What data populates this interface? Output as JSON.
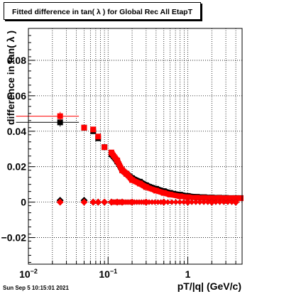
{
  "chart_data": {
    "type": "scatter",
    "title": "Fitted difference in tan( λ ) for Global Rec All EtapT",
    "xlabel": "pT/|q| (GeV/c)",
    "ylabel": "difference in tan( λ )",
    "xscale": "log",
    "xlim": [
      0.01,
      4.8
    ],
    "ylim": [
      -0.035,
      0.098
    ],
    "grid": true,
    "x_ticks": [
      "10^{-2}",
      "10^{-1}",
      "1"
    ],
    "y_ticks": [
      "−0.02",
      "0",
      "0.02",
      "0.04",
      "0.06",
      "0.08"
    ],
    "series": [
      {
        "color": "#000000",
        "marker": "square",
        "points": [
          [
            0.025,
            0.045
          ],
          [
            0.05,
            0.042
          ],
          [
            0.065,
            0.04
          ],
          [
            0.075,
            0.036
          ],
          [
            0.09,
            0.031
          ],
          [
            0.11,
            0.027
          ],
          [
            0.13,
            0.023
          ],
          [
            0.15,
            0.018
          ],
          [
            0.17,
            0.016
          ],
          [
            0.2,
            0.0135
          ],
          [
            0.25,
            0.0115
          ],
          [
            0.3,
            0.0095
          ],
          [
            0.4,
            0.0075
          ],
          [
            0.5,
            0.0062
          ],
          [
            0.6,
            0.0052
          ],
          [
            0.8,
            0.0042
          ],
          [
            1.0,
            0.0035
          ],
          [
            1.3,
            0.003
          ],
          [
            1.6,
            0.0028
          ],
          [
            2.0,
            0.0026
          ],
          [
            2.5,
            0.0025
          ],
          [
            3.0,
            0.0024
          ],
          [
            3.5,
            0.0023
          ],
          [
            4.0,
            0.0023
          ],
          [
            4.6,
            0.0023
          ]
        ],
        "xerr_first": [
          0.007,
          0.043
        ]
      },
      {
        "color": "#ff0000",
        "marker": "square",
        "points": [
          [
            0.025,
            0.0485
          ],
          [
            0.05,
            0.042
          ],
          [
            0.065,
            0.041
          ],
          [
            0.075,
            0.037
          ],
          [
            0.09,
            0.031
          ],
          [
            0.11,
            0.028
          ],
          [
            0.13,
            0.0235
          ],
          [
            0.15,
            0.018
          ],
          [
            0.17,
            0.016
          ],
          [
            0.2,
            0.0125
          ],
          [
            0.25,
            0.0105
          ],
          [
            0.3,
            0.0085
          ],
          [
            0.4,
            0.0065
          ],
          [
            0.5,
            0.0052
          ],
          [
            0.6,
            0.0043
          ],
          [
            0.8,
            0.0033
          ],
          [
            1.0,
            0.0028
          ],
          [
            1.3,
            0.0025
          ],
          [
            1.6,
            0.0024
          ],
          [
            2.0,
            0.0023
          ],
          [
            2.5,
            0.0023
          ],
          [
            3.0,
            0.0022
          ],
          [
            3.5,
            0.0022
          ],
          [
            4.0,
            0.0022
          ],
          [
            4.6,
            0.0022
          ]
        ],
        "xerr_first": [
          0.007,
          0.043
        ]
      },
      {
        "color": "#000000",
        "marker": "diamond",
        "points": [
          [
            0.025,
            0.001
          ],
          [
            0.05,
            0.001
          ],
          [
            0.065,
            0.0
          ],
          [
            0.075,
            0.0
          ],
          [
            0.09,
            0.0
          ],
          [
            0.11,
            0.0
          ],
          [
            0.13,
            0.0
          ],
          [
            0.15,
            0.0
          ],
          [
            0.2,
            0.0
          ],
          [
            0.3,
            0.0
          ],
          [
            0.5,
            0.0
          ],
          [
            1.0,
            0.0
          ],
          [
            2.0,
            0.0
          ],
          [
            4.0,
            0.0
          ]
        ]
      },
      {
        "color": "#ff0000",
        "marker": "diamond",
        "points": [
          [
            0.025,
            0.0
          ],
          [
            0.05,
            0.0
          ],
          [
            0.065,
            0.0
          ],
          [
            0.075,
            0.0
          ],
          [
            0.09,
            0.0
          ],
          [
            0.11,
            0.0
          ],
          [
            0.13,
            0.0
          ],
          [
            0.15,
            0.0
          ],
          [
            0.2,
            0.0
          ],
          [
            0.3,
            0.0
          ],
          [
            0.5,
            0.0
          ],
          [
            1.0,
            0.0
          ],
          [
            2.0,
            0.0
          ],
          [
            4.0,
            0.0
          ]
        ]
      }
    ]
  },
  "footer": "Sun Sep  5 10:15:01 2021"
}
